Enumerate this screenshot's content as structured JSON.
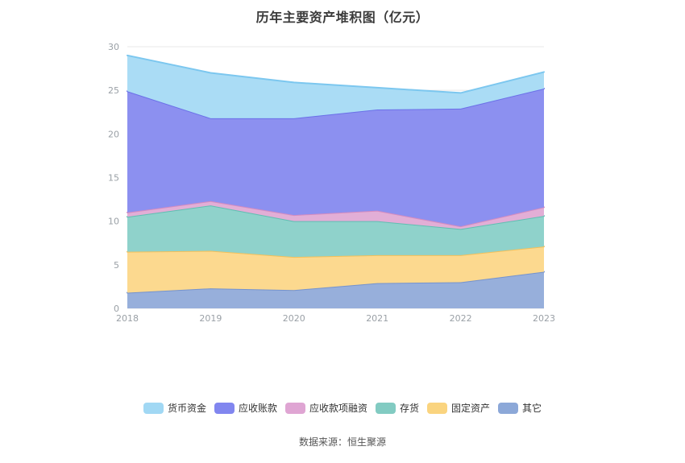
{
  "chart_data": {
    "type": "area",
    "stacked": true,
    "title": "历年主要资产堆积图（亿元）",
    "categories": [
      "2018",
      "2019",
      "2020",
      "2021",
      "2022",
      "2023"
    ],
    "series": [
      {
        "name": "货币资金",
        "color": "#a1d8f4",
        "line_color": "#7cc7ef",
        "fill": "#aadcf5",
        "values": [
          4.1,
          5.2,
          4.1,
          2.5,
          1.8,
          1.9
        ]
      },
      {
        "name": "应收账款",
        "color": "#8186ef",
        "line_color": "#6b70e8",
        "fill": "#8c90f0",
        "values": [
          13.9,
          9.5,
          11.1,
          11.6,
          13.5,
          13.6
        ]
      },
      {
        "name": "应收款项融资",
        "color": "#dfa5d3",
        "line_color": "#d48cc0",
        "fill": "#e2aed6",
        "values": [
          0.5,
          0.5,
          0.7,
          1.2,
          0.3,
          1.0
        ]
      },
      {
        "name": "存货",
        "color": "#82cbc2",
        "line_color": "#5fbfb2",
        "fill": "#8fd2cb",
        "values": [
          4.0,
          5.2,
          4.1,
          3.9,
          3.0,
          3.5
        ]
      },
      {
        "name": "固定资产",
        "color": "#fad47f",
        "line_color": "#f4c05a",
        "fill": "#fcd98f",
        "values": [
          4.7,
          4.3,
          3.8,
          3.2,
          3.1,
          2.9
        ]
      },
      {
        "name": "其它",
        "color": "#8ca8d8",
        "line_color": "#7593cd",
        "fill": "#97afdb",
        "values": [
          1.8,
          2.3,
          2.1,
          2.9,
          3.0,
          4.2
        ]
      }
    ],
    "stack_bottom_to_top": [
      "其它",
      "固定资产",
      "存货",
      "应收款项融资",
      "应收账款",
      "货币资金"
    ],
    "xlabel": "",
    "ylabel": "",
    "ylim": [
      0,
      30
    ],
    "yticks": [
      0,
      5,
      10,
      15,
      20,
      25,
      30
    ],
    "grid": true,
    "grid_color": "#e8e8e8",
    "axis_label_color": "#9aa0a6",
    "legend_position": "bottom"
  },
  "footer": {
    "source": "数据来源：恒生聚源"
  }
}
